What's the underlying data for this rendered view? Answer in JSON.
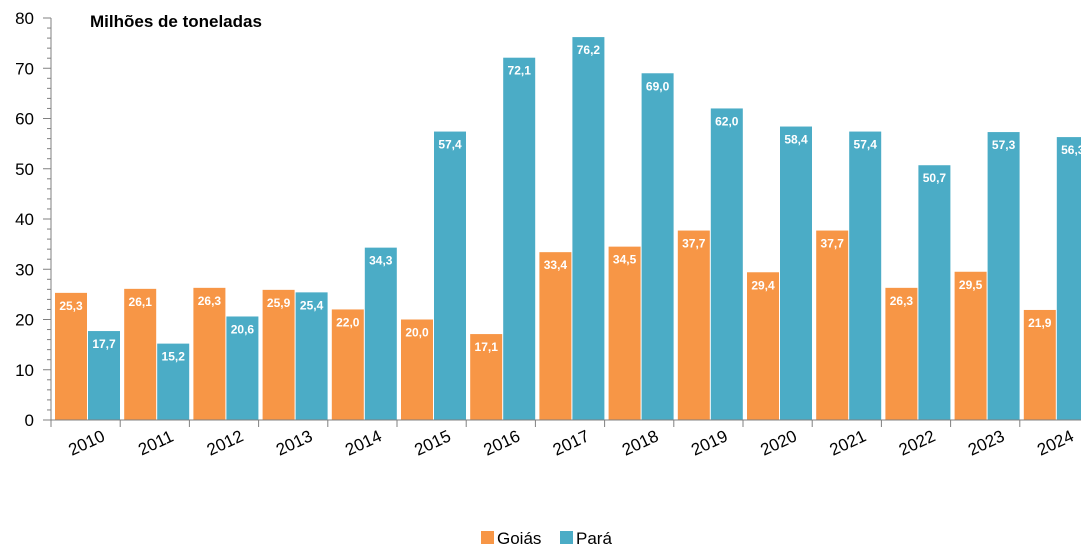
{
  "chart_data": {
    "type": "bar",
    "title": "Milhões de toneladas",
    "categories": [
      "2010",
      "2011",
      "2012",
      "2013",
      "2014",
      "2015",
      "2016",
      "2017",
      "2018",
      "2019",
      "2020",
      "2021",
      "2022",
      "2023",
      "2024"
    ],
    "series": [
      {
        "name": "Goiás",
        "color": "#F79646",
        "values": [
          25.3,
          26.1,
          26.3,
          25.9,
          22.0,
          20.0,
          17.1,
          33.4,
          34.5,
          37.7,
          29.4,
          37.7,
          26.3,
          29.5,
          21.9
        ],
        "labels": [
          "25,3",
          "26,1",
          "26,3",
          "25,9",
          "22,0",
          "20,0",
          "17,1",
          "33,4",
          "34,5",
          "37,7",
          "29,4",
          "37,7",
          "26,3",
          "29,5",
          "21,9"
        ]
      },
      {
        "name": "Pará",
        "color": "#4BACC6",
        "values": [
          17.7,
          15.2,
          20.6,
          25.4,
          34.3,
          57.4,
          72.1,
          76.2,
          69.0,
          62.0,
          58.4,
          57.4,
          50.7,
          57.3,
          56.3
        ],
        "labels": [
          "17,7",
          "15,2",
          "20,6",
          "25,4",
          "34,3",
          "57,4",
          "72,1",
          "76,2",
          "69,0",
          "62,0",
          "58,4",
          "57,4",
          "50,7",
          "57,3",
          "56,3"
        ]
      }
    ],
    "ylim": [
      0,
      80
    ],
    "yticks": [
      0,
      10,
      20,
      30,
      40,
      50,
      60,
      70,
      80
    ],
    "grid": false,
    "legend_position": "bottom-center"
  }
}
